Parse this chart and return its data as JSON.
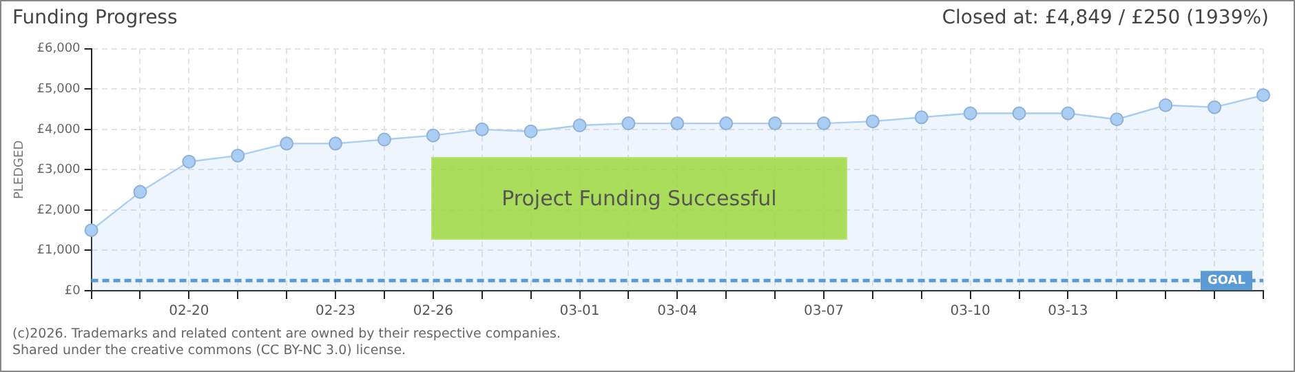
{
  "chart_data": {
    "type": "area",
    "title": "Funding Progress",
    "subtitle": "Closed at:  £4,849 /  £250 (1939%)",
    "ylabel": "PLEDGED",
    "categories": [
      null,
      null,
      "02-20",
      null,
      null,
      "02-23",
      null,
      "02-26",
      null,
      null,
      "03-01",
      null,
      "03-04",
      null,
      null,
      "03-07",
      null,
      null,
      "03-10",
      null,
      "03-13",
      null,
      null,
      null,
      null
    ],
    "series": [
      {
        "color": "#a9cdf3",
        "values": [
          1500,
          2450,
          3200,
          3350,
          3650,
          3650,
          3750,
          3850,
          4000,
          3950,
          4100,
          4150,
          4150,
          4150,
          4150,
          4150,
          4200,
          4300,
          4400,
          4400,
          4400,
          4250,
          4600,
          4550,
          4849
        ]
      }
    ],
    "ylim": [
      0,
      6000
    ],
    "yticks": [
      {
        "value": 0,
        "label": "£0"
      },
      {
        "value": 1000,
        "label": "£1,000"
      },
      {
        "value": 2000,
        "label": "£2,000"
      },
      {
        "value": 3000,
        "label": "£3,000"
      },
      {
        "value": 4000,
        "label": "£4,000"
      },
      {
        "value": 5000,
        "label": "£5,000"
      },
      {
        "value": 6000,
        "label": "£6,000"
      }
    ],
    "ref_lines": [
      {
        "axis": "y",
        "value": 250,
        "label": "GOAL",
        "color": "#5b9bd5",
        "line_style": "dashed"
      }
    ],
    "grid": true,
    "legend": false,
    "marker": "circle",
    "annotations": [
      "Project Funding Successful",
      "(c)2026. Trademarks and related content are owned by their respective companies.",
      "Shared under the creative commons (CC BY-NC 3.0) license."
    ]
  }
}
